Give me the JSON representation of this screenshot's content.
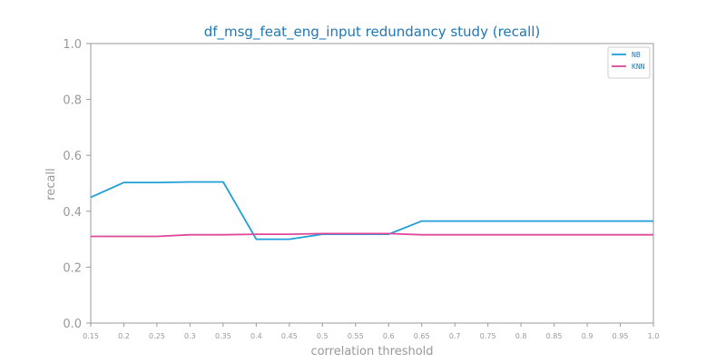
{
  "chart_data": {
    "type": "line",
    "title": "df_msg_feat_eng_input redundancy study (recall)",
    "xlabel": "correlation threshold",
    "ylabel": "recall",
    "x": [
      0.15,
      0.2,
      0.25,
      0.3,
      0.35,
      0.4,
      0.45,
      0.5,
      0.55,
      0.6,
      0.65,
      0.7,
      0.75,
      0.8,
      0.85,
      0.9,
      0.95,
      1.0
    ],
    "x_tick_labels": [
      "0.15",
      "0.2",
      "0.25",
      "0.3",
      "0.35",
      "0.4",
      "0.45",
      "0.5",
      "0.55",
      "0.6",
      "0.65",
      "0.7",
      "0.75",
      "0.8",
      "0.85",
      "0.9",
      "0.95",
      "1.0"
    ],
    "xlim": [
      0.15,
      1.0
    ],
    "ylim": [
      0.0,
      1.0
    ],
    "y_tick_labels": [
      "0.0",
      "0.2",
      "0.4",
      "0.6",
      "0.8",
      "1.0"
    ],
    "grid": false,
    "legend_position": "top-right",
    "series": [
      {
        "name": "NB",
        "color": "#1f9ed8",
        "values": [
          0.45,
          0.503,
          0.503,
          0.505,
          0.505,
          0.3,
          0.3,
          0.318,
          0.318,
          0.318,
          0.365,
          0.365,
          0.365,
          0.365,
          0.365,
          0.365,
          0.365,
          0.365
        ]
      },
      {
        "name": "KNN",
        "color": "#e0489a",
        "values": [
          0.31,
          0.31,
          0.31,
          0.316,
          0.316,
          0.318,
          0.318,
          0.32,
          0.32,
          0.32,
          0.316,
          0.316,
          0.316,
          0.316,
          0.316,
          0.316,
          0.316,
          0.316
        ]
      }
    ]
  }
}
